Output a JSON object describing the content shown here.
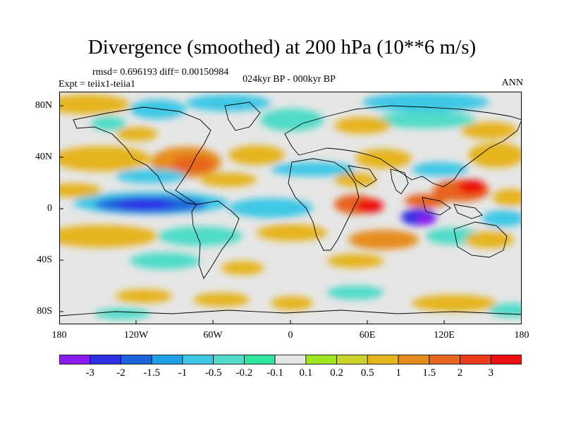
{
  "title": "Divergence (smoothed) at 200 hPa (10**6 m/s)",
  "stats_line": "rmsd= 0.696193 diff= 0.00150984",
  "experiment_label": "Expt = teiix1-teiia1",
  "period_label": "024kyr BP - 000kyr BP",
  "season_label": "ANN",
  "y_ticks": [
    "80N",
    "40N",
    "0",
    "40S",
    "80S"
  ],
  "x_ticks": [
    "180",
    "120W",
    "60W",
    "0",
    "60E",
    "120E",
    "180"
  ],
  "colorbar": {
    "labels": [
      "-3",
      "-2",
      "-1.5",
      "-1",
      "-0.5",
      "-0.2",
      "-0.1",
      "0.1",
      "0.2",
      "0.5",
      "1",
      "1.5",
      "2",
      "3"
    ],
    "colors": [
      "#8a1cf0",
      "#2f2fe6",
      "#1e64dc",
      "#1ea0e6",
      "#3cc8e6",
      "#50dcc8",
      "#2ee6a0",
      "#e6e6e6",
      "#a0e61e",
      "#c8d228",
      "#e6b41e",
      "#e68c1e",
      "#e6641e",
      "#ee3c1a",
      "#ee1010"
    ]
  },
  "colors": {
    "neutral_fill": "#e6e6e6",
    "coastline": "#000000"
  }
}
